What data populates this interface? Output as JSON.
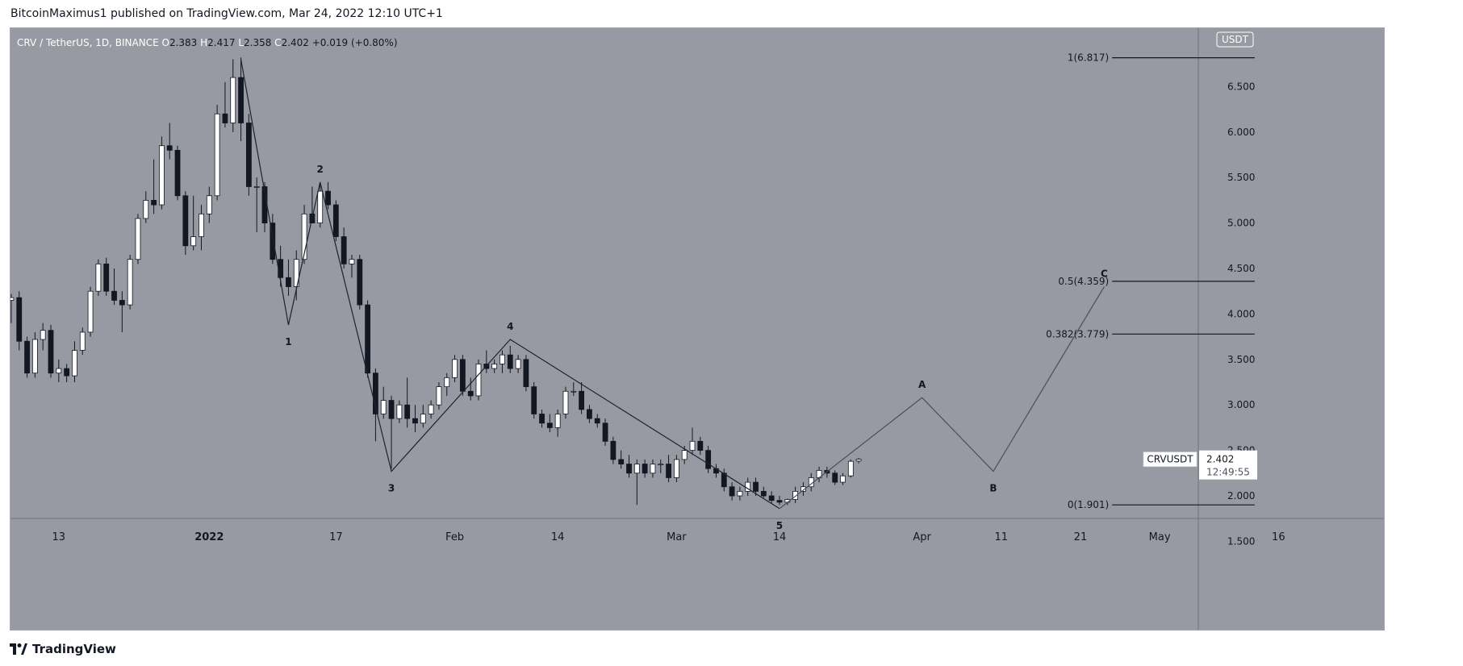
{
  "header": {
    "publisher": "BitcoinMaximus1 published on TradingView.com, Mar 24, 2022 12:10 UTC+1"
  },
  "footer": {
    "brand": "TradingView",
    "logo_icon": "tradingview-logo-icon"
  },
  "chart_data": {
    "type": "candlestick",
    "symbol_title": "CRV / TetherUS, 1D, BINANCE",
    "ohlc_readout": {
      "o_label": "O",
      "o": "2.383",
      "h_label": "H",
      "h": "2.417",
      "l_label": "L",
      "l": "2.358",
      "c_label": "C",
      "c": "2.402",
      "change": "+0.019 (+0.80%)"
    },
    "currency_badge": "USDT",
    "ylim": [
      1.45,
      7.0
    ],
    "y_ticks": [
      "6.500",
      "6.000",
      "5.500",
      "5.000",
      "4.500",
      "4.000",
      "3.500",
      "3.000",
      "2.500",
      "2.000",
      "1.500"
    ],
    "x_axis": [
      {
        "label": "13",
        "date": "2021-12-13"
      },
      {
        "label": "2022",
        "date": "2022-01-01",
        "bold": true
      },
      {
        "label": "17",
        "date": "2022-01-17"
      },
      {
        "label": "Feb",
        "date": "2022-02-01"
      },
      {
        "label": "14",
        "date": "2022-02-14"
      },
      {
        "label": "Mar",
        "date": "2022-03-01"
      },
      {
        "label": "14",
        "date": "2022-03-14"
      },
      {
        "label": "Apr",
        "date": "2022-04-01"
      },
      {
        "label": "11",
        "date": "2022-04-11"
      },
      {
        "label": "21",
        "date": "2022-04-21"
      },
      {
        "label": "May",
        "date": "2022-05-01"
      },
      {
        "label": "16",
        "date": "2022-05-16"
      }
    ],
    "candles": [
      {
        "date": "2021-12-06",
        "o": 3.7,
        "h": 4.15,
        "l": 3.55,
        "c": 4.15
      },
      {
        "date": "2021-12-07",
        "o": 4.15,
        "h": 4.22,
        "l": 3.9,
        "c": 4.18
      },
      {
        "date": "2021-12-08",
        "o": 4.18,
        "h": 4.25,
        "l": 3.6,
        "c": 3.7
      },
      {
        "date": "2021-12-09",
        "o": 3.7,
        "h": 3.75,
        "l": 3.3,
        "c": 3.35
      },
      {
        "date": "2021-12-10",
        "o": 3.35,
        "h": 3.8,
        "l": 3.3,
        "c": 3.72
      },
      {
        "date": "2021-12-11",
        "o": 3.72,
        "h": 3.9,
        "l": 3.6,
        "c": 3.82
      },
      {
        "date": "2021-12-12",
        "o": 3.82,
        "h": 3.88,
        "l": 3.3,
        "c": 3.35
      },
      {
        "date": "2021-12-13",
        "o": 3.35,
        "h": 3.5,
        "l": 3.25,
        "c": 3.4
      },
      {
        "date": "2021-12-14",
        "o": 3.4,
        "h": 3.45,
        "l": 3.25,
        "c": 3.32
      },
      {
        "date": "2021-12-15",
        "o": 3.32,
        "h": 3.7,
        "l": 3.25,
        "c": 3.6
      },
      {
        "date": "2021-12-16",
        "o": 3.6,
        "h": 3.85,
        "l": 3.55,
        "c": 3.8
      },
      {
        "date": "2021-12-17",
        "o": 3.8,
        "h": 4.3,
        "l": 3.75,
        "c": 4.25
      },
      {
        "date": "2021-12-18",
        "o": 4.25,
        "h": 4.6,
        "l": 4.2,
        "c": 4.55
      },
      {
        "date": "2021-12-19",
        "o": 4.55,
        "h": 4.62,
        "l": 4.2,
        "c": 4.25
      },
      {
        "date": "2021-12-20",
        "o": 4.25,
        "h": 4.5,
        "l": 4.1,
        "c": 4.15
      },
      {
        "date": "2021-12-21",
        "o": 4.15,
        "h": 4.25,
        "l": 3.8,
        "c": 4.1
      },
      {
        "date": "2021-12-22",
        "o": 4.1,
        "h": 4.65,
        "l": 4.05,
        "c": 4.6
      },
      {
        "date": "2021-12-23",
        "o": 4.6,
        "h": 5.1,
        "l": 4.55,
        "c": 5.05
      },
      {
        "date": "2021-12-24",
        "o": 5.05,
        "h": 5.35,
        "l": 5.0,
        "c": 5.25
      },
      {
        "date": "2021-12-25",
        "o": 5.25,
        "h": 5.7,
        "l": 5.1,
        "c": 5.2
      },
      {
        "date": "2021-12-26",
        "o": 5.2,
        "h": 5.95,
        "l": 5.15,
        "c": 5.85
      },
      {
        "date": "2021-12-27",
        "o": 5.85,
        "h": 6.1,
        "l": 5.7,
        "c": 5.8
      },
      {
        "date": "2021-12-28",
        "o": 5.8,
        "h": 5.85,
        "l": 5.25,
        "c": 5.3
      },
      {
        "date": "2021-12-29",
        "o": 5.3,
        "h": 5.35,
        "l": 4.65,
        "c": 4.75
      },
      {
        "date": "2021-12-30",
        "o": 4.75,
        "h": 5.3,
        "l": 4.7,
        "c": 4.85
      },
      {
        "date": "2021-12-31",
        "o": 4.85,
        "h": 5.2,
        "l": 4.7,
        "c": 5.1
      },
      {
        "date": "2022-01-01",
        "o": 5.1,
        "h": 5.4,
        "l": 5.0,
        "c": 5.3
      },
      {
        "date": "2022-01-02",
        "o": 5.3,
        "h": 6.3,
        "l": 5.25,
        "c": 6.2
      },
      {
        "date": "2022-01-03",
        "o": 6.2,
        "h": 6.55,
        "l": 6.05,
        "c": 6.1
      },
      {
        "date": "2022-01-04",
        "o": 6.1,
        "h": 6.8,
        "l": 6.0,
        "c": 6.6
      },
      {
        "date": "2022-01-05",
        "o": 6.6,
        "h": 6.82,
        "l": 5.9,
        "c": 6.1
      },
      {
        "date": "2022-01-06",
        "o": 6.1,
        "h": 6.2,
        "l": 5.3,
        "c": 5.4
      },
      {
        "date": "2022-01-07",
        "o": 5.4,
        "h": 5.5,
        "l": 4.9,
        "c": 5.4
      },
      {
        "date": "2022-01-08",
        "o": 5.4,
        "h": 5.45,
        "l": 4.9,
        "c": 5.0
      },
      {
        "date": "2022-01-09",
        "o": 5.0,
        "h": 5.1,
        "l": 4.55,
        "c": 4.6
      },
      {
        "date": "2022-01-10",
        "o": 4.6,
        "h": 4.75,
        "l": 4.3,
        "c": 4.4
      },
      {
        "date": "2022-01-11",
        "o": 4.4,
        "h": 4.6,
        "l": 4.2,
        "c": 4.3
      },
      {
        "date": "2022-01-12",
        "o": 4.3,
        "h": 4.7,
        "l": 4.15,
        "c": 4.6
      },
      {
        "date": "2022-01-13",
        "o": 4.6,
        "h": 5.2,
        "l": 4.55,
        "c": 5.1
      },
      {
        "date": "2022-01-14",
        "o": 5.1,
        "h": 5.4,
        "l": 5.0,
        "c": 5.0
      },
      {
        "date": "2022-01-15",
        "o": 5.0,
        "h": 5.45,
        "l": 4.95,
        "c": 5.35
      },
      {
        "date": "2022-01-16",
        "o": 5.35,
        "h": 5.45,
        "l": 5.15,
        "c": 5.2
      },
      {
        "date": "2022-01-17",
        "o": 5.2,
        "h": 5.25,
        "l": 4.8,
        "c": 4.85
      },
      {
        "date": "2022-01-18",
        "o": 4.85,
        "h": 4.95,
        "l": 4.5,
        "c": 4.55
      },
      {
        "date": "2022-01-19",
        "o": 4.55,
        "h": 4.65,
        "l": 4.4,
        "c": 4.6
      },
      {
        "date": "2022-01-20",
        "o": 4.6,
        "h": 4.65,
        "l": 4.05,
        "c": 4.1
      },
      {
        "date": "2022-01-21",
        "o": 4.1,
        "h": 4.15,
        "l": 3.3,
        "c": 3.35
      },
      {
        "date": "2022-01-22",
        "o": 3.35,
        "h": 3.4,
        "l": 2.6,
        "c": 2.9
      },
      {
        "date": "2022-01-23",
        "o": 2.9,
        "h": 3.2,
        "l": 2.85,
        "c": 3.05
      },
      {
        "date": "2022-01-24",
        "o": 3.05,
        "h": 3.1,
        "l": 2.3,
        "c": 2.85
      },
      {
        "date": "2022-01-25",
        "o": 2.85,
        "h": 3.05,
        "l": 2.8,
        "c": 3.0
      },
      {
        "date": "2022-01-26",
        "o": 3.0,
        "h": 3.3,
        "l": 2.75,
        "c": 2.85
      },
      {
        "date": "2022-01-27",
        "o": 2.85,
        "h": 3.0,
        "l": 2.7,
        "c": 2.8
      },
      {
        "date": "2022-01-28",
        "o": 2.8,
        "h": 3.0,
        "l": 2.75,
        "c": 2.9
      },
      {
        "date": "2022-01-29",
        "o": 2.9,
        "h": 3.05,
        "l": 2.85,
        "c": 3.0
      },
      {
        "date": "2022-01-30",
        "o": 3.0,
        "h": 3.25,
        "l": 2.95,
        "c": 3.2
      },
      {
        "date": "2022-01-31",
        "o": 3.2,
        "h": 3.35,
        "l": 3.1,
        "c": 3.3
      },
      {
        "date": "2022-02-01",
        "o": 3.3,
        "h": 3.55,
        "l": 3.25,
        "c": 3.5
      },
      {
        "date": "2022-02-02",
        "o": 3.5,
        "h": 3.55,
        "l": 3.1,
        "c": 3.15
      },
      {
        "date": "2022-02-03",
        "o": 3.15,
        "h": 3.3,
        "l": 3.05,
        "c": 3.1
      },
      {
        "date": "2022-02-04",
        "o": 3.1,
        "h": 3.5,
        "l": 3.05,
        "c": 3.45
      },
      {
        "date": "2022-02-05",
        "o": 3.45,
        "h": 3.6,
        "l": 3.35,
        "c": 3.4
      },
      {
        "date": "2022-02-06",
        "o": 3.4,
        "h": 3.5,
        "l": 3.35,
        "c": 3.45
      },
      {
        "date": "2022-02-07",
        "o": 3.45,
        "h": 3.6,
        "l": 3.35,
        "c": 3.55
      },
      {
        "date": "2022-02-08",
        "o": 3.55,
        "h": 3.65,
        "l": 3.35,
        "c": 3.4
      },
      {
        "date": "2022-02-09",
        "o": 3.4,
        "h": 3.55,
        "l": 3.35,
        "c": 3.5
      },
      {
        "date": "2022-02-10",
        "o": 3.5,
        "h": 3.55,
        "l": 3.15,
        "c": 3.2
      },
      {
        "date": "2022-02-11",
        "o": 3.2,
        "h": 3.25,
        "l": 2.85,
        "c": 2.9
      },
      {
        "date": "2022-02-12",
        "o": 2.9,
        "h": 2.95,
        "l": 2.75,
        "c": 2.8
      },
      {
        "date": "2022-02-13",
        "o": 2.8,
        "h": 2.9,
        "l": 2.7,
        "c": 2.75
      },
      {
        "date": "2022-02-14",
        "o": 2.75,
        "h": 2.95,
        "l": 2.65,
        "c": 2.9
      },
      {
        "date": "2022-02-15",
        "o": 2.9,
        "h": 3.2,
        "l": 2.85,
        "c": 3.15
      },
      {
        "date": "2022-02-16",
        "o": 3.15,
        "h": 3.25,
        "l": 3.1,
        "c": 3.15
      },
      {
        "date": "2022-02-17",
        "o": 3.15,
        "h": 3.25,
        "l": 2.9,
        "c": 2.95
      },
      {
        "date": "2022-02-18",
        "o": 2.95,
        "h": 3.0,
        "l": 2.8,
        "c": 2.85
      },
      {
        "date": "2022-02-19",
        "o": 2.85,
        "h": 2.9,
        "l": 2.75,
        "c": 2.8
      },
      {
        "date": "2022-02-20",
        "o": 2.8,
        "h": 2.85,
        "l": 2.55,
        "c": 2.6
      },
      {
        "date": "2022-02-21",
        "o": 2.6,
        "h": 2.65,
        "l": 2.35,
        "c": 2.4
      },
      {
        "date": "2022-02-22",
        "o": 2.4,
        "h": 2.5,
        "l": 2.3,
        "c": 2.35
      },
      {
        "date": "2022-02-23",
        "o": 2.35,
        "h": 2.45,
        "l": 2.2,
        "c": 2.25
      },
      {
        "date": "2022-02-24",
        "o": 2.25,
        "h": 2.4,
        "l": 1.9,
        "c": 2.35
      },
      {
        "date": "2022-02-25",
        "o": 2.35,
        "h": 2.4,
        "l": 2.2,
        "c": 2.25
      },
      {
        "date": "2022-02-26",
        "o": 2.25,
        "h": 2.4,
        "l": 2.2,
        "c": 2.35
      },
      {
        "date": "2022-02-27",
        "o": 2.35,
        "h": 2.4,
        "l": 2.25,
        "c": 2.35
      },
      {
        "date": "2022-02-28",
        "o": 2.35,
        "h": 2.45,
        "l": 2.15,
        "c": 2.2
      },
      {
        "date": "2022-03-01",
        "o": 2.2,
        "h": 2.45,
        "l": 2.15,
        "c": 2.4
      },
      {
        "date": "2022-03-02",
        "o": 2.4,
        "h": 2.55,
        "l": 2.35,
        "c": 2.5
      },
      {
        "date": "2022-03-03",
        "o": 2.5,
        "h": 2.75,
        "l": 2.45,
        "c": 2.6
      },
      {
        "date": "2022-03-04",
        "o": 2.6,
        "h": 2.65,
        "l": 2.45,
        "c": 2.5
      },
      {
        "date": "2022-03-05",
        "o": 2.5,
        "h": 2.55,
        "l": 2.25,
        "c": 2.3
      },
      {
        "date": "2022-03-06",
        "o": 2.3,
        "h": 2.35,
        "l": 2.2,
        "c": 2.25
      },
      {
        "date": "2022-03-07",
        "o": 2.25,
        "h": 2.3,
        "l": 2.05,
        "c": 2.1
      },
      {
        "date": "2022-03-08",
        "o": 2.1,
        "h": 2.15,
        "l": 1.95,
        "c": 2.0
      },
      {
        "date": "2022-03-09",
        "o": 2.0,
        "h": 2.1,
        "l": 1.95,
        "c": 2.05
      },
      {
        "date": "2022-03-10",
        "o": 2.05,
        "h": 2.2,
        "l": 2.0,
        "c": 2.15
      },
      {
        "date": "2022-03-11",
        "o": 2.15,
        "h": 2.2,
        "l": 2.0,
        "c": 2.05
      },
      {
        "date": "2022-03-12",
        "o": 2.05,
        "h": 2.1,
        "l": 1.98,
        "c": 2.0
      },
      {
        "date": "2022-03-13",
        "o": 2.0,
        "h": 2.05,
        "l": 1.92,
        "c": 1.95
      },
      {
        "date": "2022-03-14",
        "o": 1.95,
        "h": 2.0,
        "l": 1.9,
        "c": 1.93
      },
      {
        "date": "2022-03-15",
        "o": 1.93,
        "h": 1.97,
        "l": 1.9,
        "c": 1.96
      },
      {
        "date": "2022-03-16",
        "o": 1.96,
        "h": 2.1,
        "l": 1.92,
        "c": 2.05
      },
      {
        "date": "2022-03-17",
        "o": 2.05,
        "h": 2.15,
        "l": 2.0,
        "c": 2.1
      },
      {
        "date": "2022-03-18",
        "o": 2.1,
        "h": 2.25,
        "l": 2.05,
        "c": 2.2
      },
      {
        "date": "2022-03-19",
        "o": 2.2,
        "h": 2.32,
        "l": 2.15,
        "c": 2.28
      },
      {
        "date": "2022-03-20",
        "o": 2.28,
        "h": 2.32,
        "l": 2.2,
        "c": 2.25
      },
      {
        "date": "2022-03-21",
        "o": 2.25,
        "h": 2.28,
        "l": 2.12,
        "c": 2.15
      },
      {
        "date": "2022-03-22",
        "o": 2.15,
        "h": 2.25,
        "l": 2.12,
        "c": 2.22
      },
      {
        "date": "2022-03-23",
        "o": 2.22,
        "h": 2.4,
        "l": 2.2,
        "c": 2.38
      },
      {
        "date": "2022-03-24",
        "o": 2.383,
        "h": 2.417,
        "l": 2.358,
        "c": 2.402
      }
    ],
    "wave_labels": [
      {
        "label": "1",
        "date": "2022-01-11",
        "price": 3.88,
        "pos": "below"
      },
      {
        "label": "2",
        "date": "2022-01-15",
        "price": 5.45,
        "pos": "above"
      },
      {
        "label": "3",
        "date": "2022-01-24",
        "price": 2.27,
        "pos": "below"
      },
      {
        "label": "4",
        "date": "2022-02-08",
        "price": 3.72,
        "pos": "above"
      },
      {
        "label": "5",
        "date": "2022-03-14",
        "price": 1.86,
        "pos": "below"
      },
      {
        "label": "A",
        "date": "2022-04-01",
        "price": 3.08,
        "pos": "above"
      },
      {
        "label": "B",
        "date": "2022-04-10",
        "price": 2.27,
        "pos": "below"
      },
      {
        "label": "C",
        "date": "2022-04-24",
        "price": 4.3,
        "pos": "above"
      }
    ],
    "impulse_path": [
      {
        "date": "2022-01-05",
        "price": 6.8
      },
      {
        "date": "2022-01-11",
        "price": 3.88
      },
      {
        "date": "2022-01-15",
        "price": 5.45
      },
      {
        "date": "2022-01-24",
        "price": 2.27
      },
      {
        "date": "2022-02-08",
        "price": 3.72
      },
      {
        "date": "2022-03-14",
        "price": 1.86
      }
    ],
    "projection_path": [
      {
        "date": "2022-03-14",
        "price": 1.86
      },
      {
        "date": "2022-04-01",
        "price": 3.08
      },
      {
        "date": "2022-04-10",
        "price": 2.27
      },
      {
        "date": "2022-04-24",
        "price": 4.3
      }
    ],
    "fib_levels": [
      {
        "label": "1(6.817)",
        "value": 6.817
      },
      {
        "label": "0.5(4.359)",
        "value": 4.359
      },
      {
        "label": "0.382(3.779)",
        "value": 3.779
      },
      {
        "label": "0(1.901)",
        "value": 1.901
      }
    ],
    "fib_range": {
      "start": "2022-04-25",
      "end": "2022-05-13"
    },
    "price_tag": {
      "symbol": "CRVUSDT",
      "price": "2.402",
      "countdown": "12:49:55",
      "value": 2.402
    },
    "colors": {
      "background": "#979aa2",
      "up_candle": "#ffffff",
      "down_candle": "#131722",
      "wick": "#131722",
      "text": "#131722",
      "impulse_line": "#1e222d",
      "projection_line": "#4a4e57"
    }
  }
}
